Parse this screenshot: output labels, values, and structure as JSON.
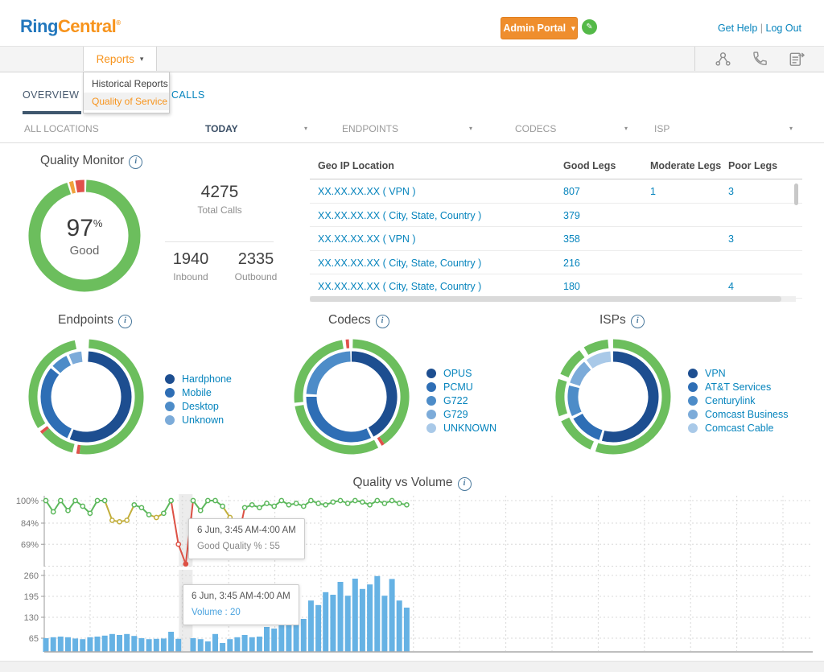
{
  "icons": {
    "caret_down": "▾",
    "info": "i",
    "pencil": "✎",
    "divider": "|"
  },
  "header": {
    "logo_ring": "Ring",
    "logo_central": "Central",
    "logo_reg": "®",
    "admin_portal_label": "Admin Portal",
    "get_help": "Get Help",
    "log_out": "Log Out"
  },
  "navbar": {
    "reports_label": "Reports",
    "menu_items": [
      {
        "label": "Historical Reports"
      },
      {
        "label": "Quality of Service"
      }
    ],
    "icon_names": [
      "network-icon",
      "phone-icon",
      "report-icon"
    ]
  },
  "tabs": [
    {
      "label": "OVERVIEW"
    },
    {
      "label": "CALLS"
    }
  ],
  "filters": {
    "items": [
      "ALL LOCATIONS",
      "TODAY",
      "ENDPOINTS",
      "CODECS",
      "ISP"
    ]
  },
  "quality_monitor": {
    "title": "Quality Monitor",
    "percent": "97",
    "percent_sign": "%",
    "good_label": "Good",
    "total_calls": "4275",
    "total_calls_label": "Total Calls",
    "inbound": "1940",
    "inbound_label": "Inbound",
    "outbound": "2335",
    "outbound_label": "Outbound"
  },
  "geo_table": {
    "columns": [
      "Geo IP Location",
      "Good Legs",
      "Moderate Legs",
      "Poor Legs"
    ],
    "rows": [
      [
        "XX.XX.XX.XX ( VPN )",
        "807",
        "1",
        "3"
      ],
      [
        "XX.XX.XX.XX ( City, State, Country )",
        "379",
        "",
        ""
      ],
      [
        "XX.XX.XX.XX ( VPN )",
        "358",
        "",
        "3"
      ],
      [
        "XX.XX.XX.XX ( City, State, Country )",
        "216",
        "",
        ""
      ],
      [
        "XX.XX.XX.XX ( City, State, Country )",
        "180",
        "",
        "4"
      ]
    ]
  },
  "chart_data": [
    {
      "type": "donut",
      "title": "Quality Monitor",
      "center_value": 97,
      "center_label": "Good",
      "rings": [
        {
          "start": -16,
          "segments": [
            {
              "label": "Moderate",
              "value": 1.2,
              "color": "#f0a23c"
            },
            {
              "label": "gap",
              "value": 0.6,
              "color": "#ffffff"
            },
            {
              "label": "Poor",
              "value": 2.6,
              "color": "#e0514b"
            },
            {
              "label": "gap",
              "value": 0.6,
              "color": "#ffffff"
            },
            {
              "label": "Good",
              "value": 94.4,
              "color": "#6cbe5d"
            },
            {
              "label": "gap",
              "value": 0.6,
              "color": "#ffffff"
            }
          ]
        }
      ]
    },
    {
      "type": "donut",
      "title": "Endpoints",
      "legend": [
        {
          "label": "Hardphone",
          "color": "#1d4e90"
        },
        {
          "label": "Mobile",
          "color": "#2e6eb5"
        },
        {
          "label": "Desktop",
          "color": "#4d8cc8"
        },
        {
          "label": "Unknown",
          "color": "#7cabd9"
        }
      ],
      "rings": [
        {
          "start": 3,
          "segments": [
            {
              "label": "good",
              "value": 51,
              "color": "#6cbe5d"
            },
            {
              "label": "poor",
              "value": 0.9,
              "color": "#e0514b"
            },
            {
              "label": "gap",
              "value": 1.1,
              "color": "#ffffff"
            },
            {
              "label": "good",
              "value": 10,
              "color": "#6cbe5d"
            },
            {
              "label": "poor",
              "value": 0.9,
              "color": "#e0514b"
            },
            {
              "label": "gap",
              "value": 1.1,
              "color": "#ffffff"
            },
            {
              "label": "good",
              "value": 31,
              "color": "#6cbe5d"
            },
            {
              "label": "gap",
              "value": 4,
              "color": "#ffffff"
            }
          ]
        },
        {
          "start": 3,
          "segments": [
            {
              "label": "Hardphone",
              "value": 55,
              "color": "#1d4e90"
            },
            {
              "label": "gap",
              "value": 1,
              "color": "#ffffff"
            },
            {
              "label": "Mobile",
              "value": 29,
              "color": "#2e6eb5"
            },
            {
              "label": "gap",
              "value": 1,
              "color": "#ffffff"
            },
            {
              "label": "Desktop",
              "value": 6,
              "color": "#4d8cc8"
            },
            {
              "label": "gap",
              "value": 1,
              "color": "#ffffff"
            },
            {
              "label": "Unknown",
              "value": 4.5,
              "color": "#7cabd9"
            },
            {
              "label": "gap",
              "value": 2.5,
              "color": "#ffffff"
            }
          ]
        }
      ]
    },
    {
      "type": "donut",
      "title": "Codecs",
      "legend": [
        {
          "label": "OPUS",
          "color": "#1d4e90"
        },
        {
          "label": "PCMU",
          "color": "#2e6eb5"
        },
        {
          "label": "G722",
          "color": "#4d8cc8"
        },
        {
          "label": "G729",
          "color": "#7cabd9"
        },
        {
          "label": "UNKNOWN",
          "color": "#a9c9e8"
        }
      ],
      "rings": [
        {
          "start": -6,
          "segments": [
            {
              "label": "poor",
              "value": 0.9,
              "color": "#e0514b"
            },
            {
              "label": "gap",
              "value": 1.1,
              "color": "#ffffff"
            },
            {
              "label": "good",
              "value": 40,
              "color": "#6cbe5d"
            },
            {
              "label": "poor",
              "value": 0.9,
              "color": "#e0514b"
            },
            {
              "label": "gap",
              "value": 1.1,
              "color": "#ffffff"
            },
            {
              "label": "good",
              "value": 30,
              "color": "#6cbe5d"
            },
            {
              "label": "gap",
              "value": 1,
              "color": "#ffffff"
            },
            {
              "label": "good",
              "value": 24,
              "color": "#6cbe5d"
            },
            {
              "label": "gap",
              "value": 1,
              "color": "#ffffff"
            }
          ]
        },
        {
          "start": 0,
          "segments": [
            {
              "label": "OPUS",
              "value": 42,
              "color": "#1d4e90"
            },
            {
              "label": "gap",
              "value": 1,
              "color": "#ffffff"
            },
            {
              "label": "PCMU",
              "value": 32,
              "color": "#2e6eb5"
            },
            {
              "label": "gap",
              "value": 1,
              "color": "#ffffff"
            },
            {
              "label": "G722",
              "value": 23.5,
              "color": "#4d8cc8"
            },
            {
              "label": "gap",
              "value": 0.5,
              "color": "#ffffff"
            }
          ]
        }
      ]
    },
    {
      "type": "donut",
      "title": "ISPs",
      "legend": [
        {
          "label": "VPN",
          "color": "#1d4e90"
        },
        {
          "label": "AT&T Services",
          "color": "#2e6eb5"
        },
        {
          "label": "Centurylink",
          "color": "#4d8cc8"
        },
        {
          "label": "Comcast Business",
          "color": "#7cabd9"
        },
        {
          "label": "Comcast Cable",
          "color": "#a9c9e8"
        }
      ],
      "rings": [
        {
          "start": 0,
          "segments": [
            {
              "label": "good",
              "value": 55,
              "color": "#6cbe5d"
            },
            {
              "label": "gap",
              "value": 1.5,
              "color": "#ffffff"
            },
            {
              "label": "good",
              "value": 11.5,
              "color": "#6cbe5d"
            },
            {
              "label": "gap",
              "value": 1.5,
              "color": "#ffffff"
            },
            {
              "label": "good",
              "value": 10.5,
              "color": "#6cbe5d"
            },
            {
              "label": "gap",
              "value": 1.5,
              "color": "#ffffff"
            },
            {
              "label": "good",
              "value": 8.5,
              "color": "#6cbe5d"
            },
            {
              "label": "gap",
              "value": 1.5,
              "color": "#ffffff"
            },
            {
              "label": "good",
              "value": 7,
              "color": "#6cbe5d"
            },
            {
              "label": "gap",
              "value": 1.5,
              "color": "#ffffff"
            }
          ]
        },
        {
          "start": 0,
          "segments": [
            {
              "label": "VPN",
              "value": 54,
              "color": "#1d4e90"
            },
            {
              "label": "gap",
              "value": 1,
              "color": "#ffffff"
            },
            {
              "label": "AT&T Services",
              "value": 12,
              "color": "#2e6eb5"
            },
            {
              "label": "gap",
              "value": 1,
              "color": "#ffffff"
            },
            {
              "label": "Centurylink",
              "value": 11,
              "color": "#4d8cc8"
            },
            {
              "label": "gap",
              "value": 1,
              "color": "#ffffff"
            },
            {
              "label": "Comcast Business",
              "value": 9,
              "color": "#7cabd9"
            },
            {
              "label": "gap",
              "value": 1,
              "color": "#ffffff"
            },
            {
              "label": "Comcast Cable",
              "value": 9,
              "color": "#a9c9e8"
            },
            {
              "label": "gap",
              "value": 1,
              "color": "#ffffff"
            }
          ]
        }
      ]
    },
    {
      "type": "line",
      "title": "Quality vs Volume",
      "series_name": "Good Quality %",
      "yticks": [
        {
          "label": "100%",
          "value": 100
        },
        {
          "label": "84%",
          "value": 84
        },
        {
          "label": "69%",
          "value": 69
        }
      ],
      "ylim": [
        53,
        104
      ],
      "grid": true,
      "values": [
        100,
        92,
        100,
        93,
        100,
        96,
        91,
        100,
        100,
        86,
        85,
        86,
        97,
        95,
        90,
        88,
        91,
        100,
        69,
        55,
        100,
        93,
        100,
        100,
        96,
        88,
        70,
        95,
        97,
        95,
        98,
        96,
        100,
        97,
        98,
        96,
        100,
        98,
        97,
        99,
        100,
        98,
        100,
        99,
        97,
        100,
        98,
        100,
        98,
        97
      ],
      "highlight_index": 19,
      "tooltip": {
        "line1": "6 Jun, 3:45 AM-4:00 AM",
        "line2": "Good Quality % : 55"
      },
      "colors": {
        "good": "#5cb85c",
        "mid": "#c2ae3a",
        "bad": "#dd5145"
      }
    },
    {
      "type": "bar",
      "title": "Quality vs Volume",
      "series_name": "Volume",
      "yticks": [
        {
          "label": "260",
          "value": 260
        },
        {
          "label": "195",
          "value": 195
        },
        {
          "label": "130",
          "value": 130
        },
        {
          "label": "65",
          "value": 65
        }
      ],
      "ylim": [
        22,
        272
      ],
      "grid": true,
      "values": [
        65,
        68,
        70,
        68,
        64,
        62,
        68,
        70,
        73,
        78,
        75,
        78,
        72,
        65,
        62,
        63,
        64,
        85,
        63,
        20,
        65,
        62,
        55,
        78,
        50,
        62,
        68,
        75,
        68,
        70,
        100,
        95,
        125,
        125,
        125,
        125,
        182,
        168,
        208,
        200,
        240,
        197,
        250,
        218,
        232,
        258,
        197,
        249,
        182,
        160
      ],
      "highlight_index": 19,
      "tooltip": {
        "line1": "6 Jun, 3:45 AM-4:00 AM",
        "line2": "Volume : 20"
      },
      "color": "#66b2e4"
    }
  ]
}
